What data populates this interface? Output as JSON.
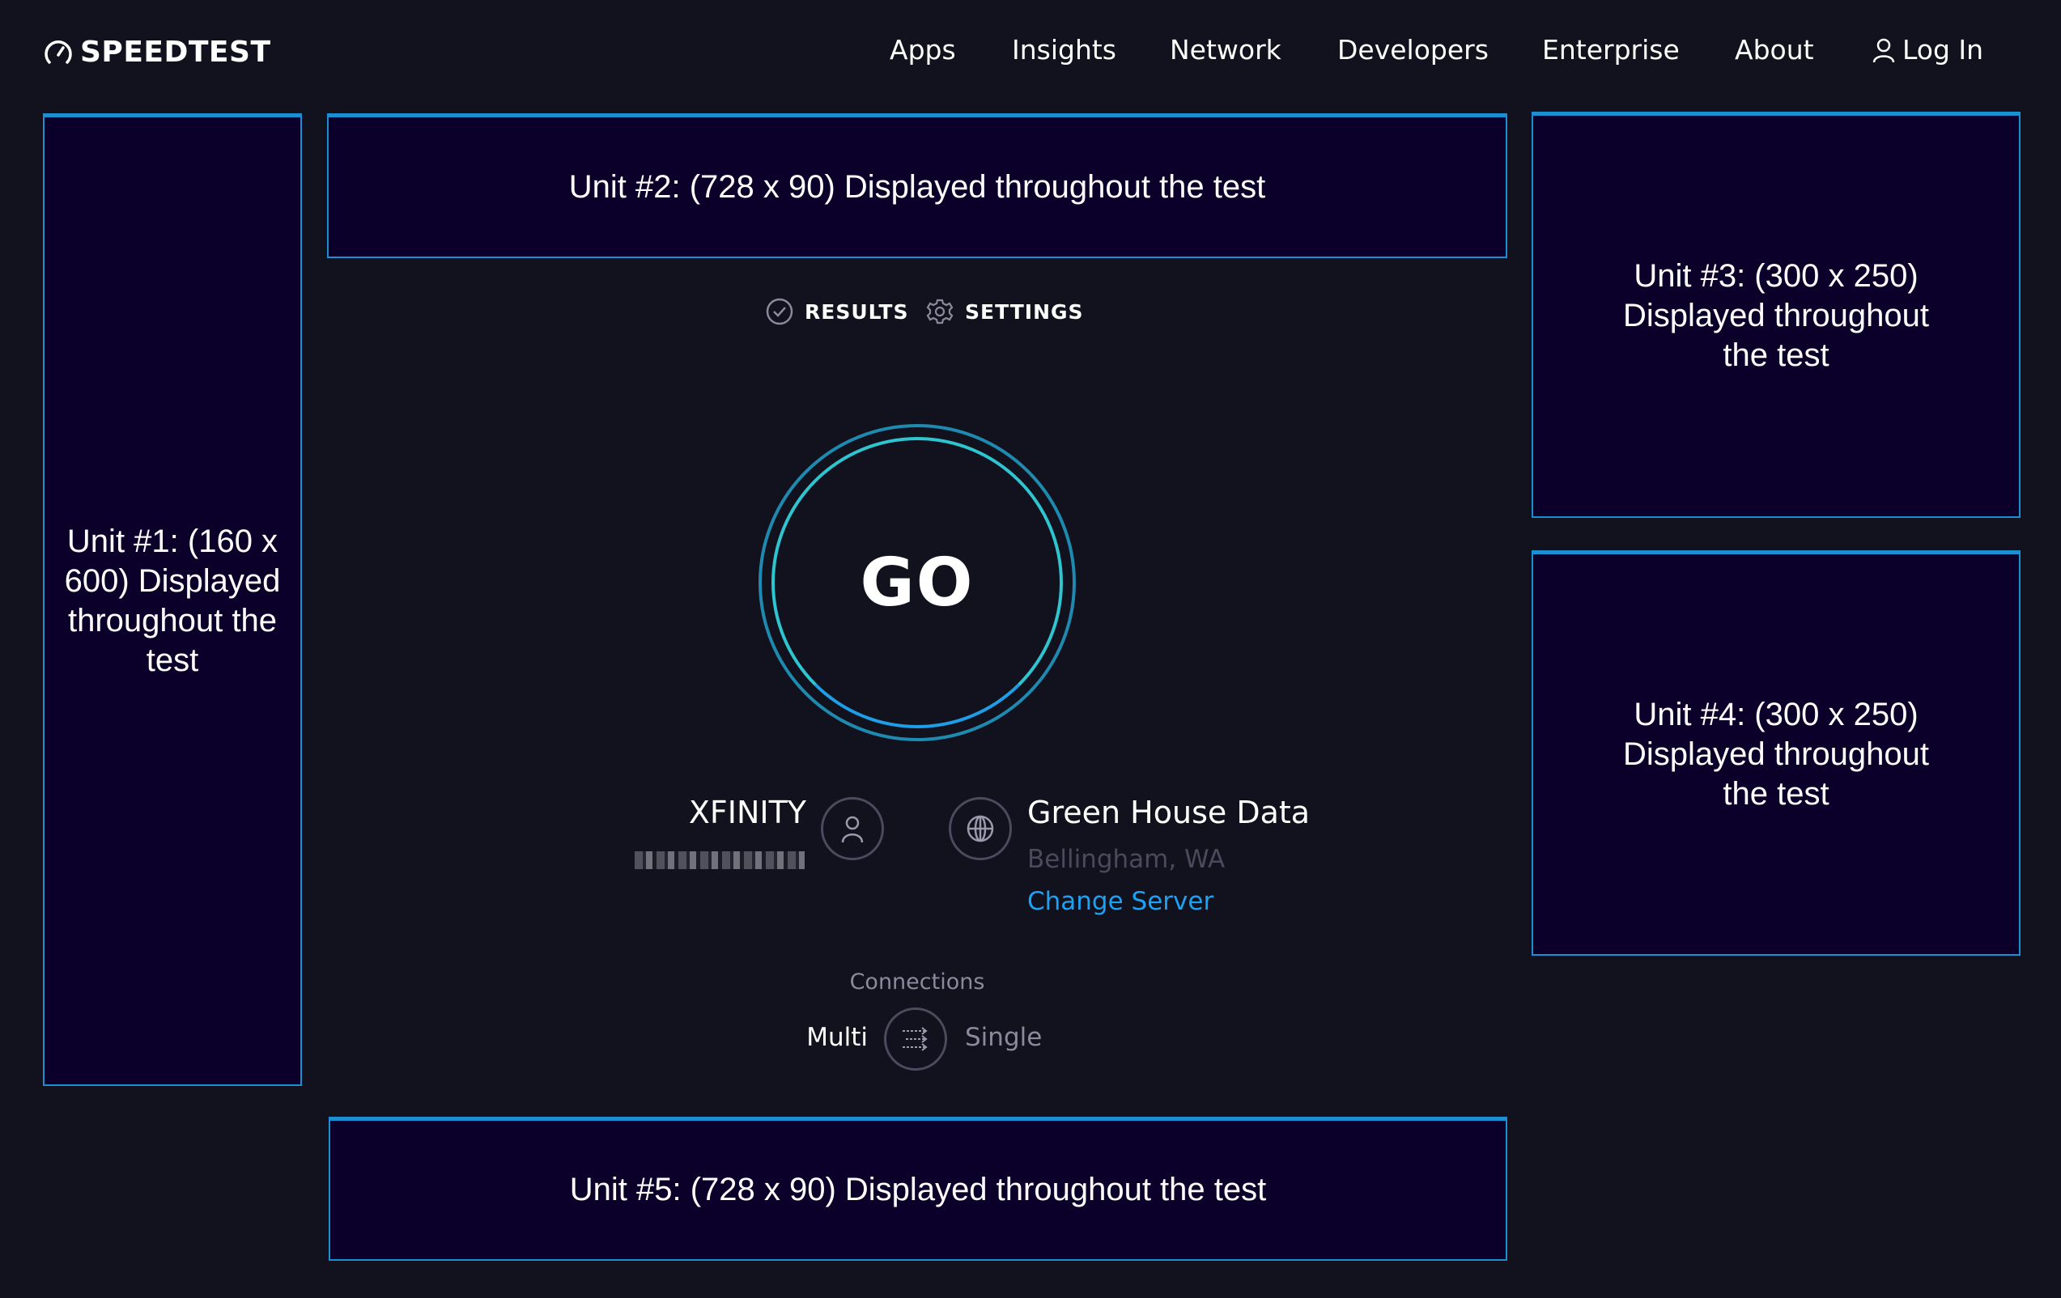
{
  "header": {
    "logo_text": "SPEEDTEST",
    "nav": [
      "Apps",
      "Insights",
      "Network",
      "Developers",
      "Enterprise",
      "About"
    ],
    "login_label": "Log In"
  },
  "ads": {
    "unit1": "Unit #1: (160 x 600) Displayed throughout the test",
    "unit2": "Unit #2: (728 x 90) Displayed throughout the test",
    "unit3": "Unit #3: (300 x 250) Displayed throughout the test",
    "unit4": "Unit #4: (300 x 250) Displayed throughout the test",
    "unit5": "Unit #5: (728 x 90) Displayed throughout the test"
  },
  "tabs": {
    "results": "RESULTS",
    "settings": "SETTINGS"
  },
  "go_label": "GO",
  "isp": {
    "name": "XFINITY"
  },
  "server": {
    "name": "Green House Data",
    "location": "Bellingham, WA",
    "change_label": "Change Server"
  },
  "connections": {
    "label": "Connections",
    "multi": "Multi",
    "single": "Single",
    "selected": "Multi"
  },
  "colors": {
    "background": "#11121d",
    "ad_fill": "#0b0029",
    "ad_border": "#1b8fd1",
    "link": "#1da1f2",
    "ring_outer": "#1f8ab0",
    "ring_inner": "#2fd3c8"
  }
}
